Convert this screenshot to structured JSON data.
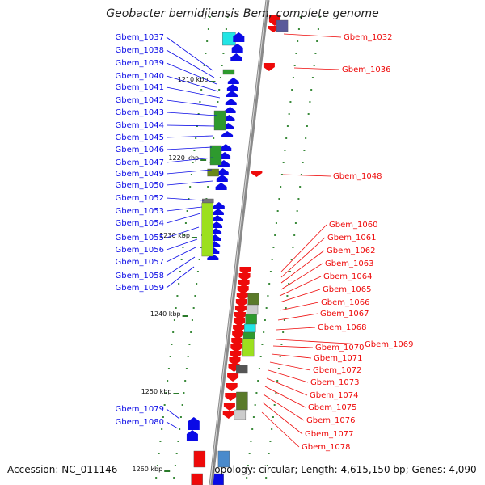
{
  "title": "Geobacter bemidjiensis Bem, complete genome",
  "accession": "Accession: NC_011146",
  "topology": "Topology: circular; Length: 4,615,150 bp; Genes: 4,090",
  "colors": {
    "forward": "#0a0ae6",
    "reverse": "#ee0a0a",
    "tick": "#2a7a2a",
    "backbone": "#8a8a8a"
  },
  "ticks": [
    {
      "label": "1210 kbp"
    },
    {
      "label": "1220 kbp"
    },
    {
      "label": "1230 kbp"
    },
    {
      "label": "1240 kbp"
    },
    {
      "label": "1250 kbp"
    },
    {
      "label": "1260 kbp"
    }
  ],
  "left_labels": [
    "Gbem_1037",
    "Gbem_1038",
    "Gbem_1039",
    "Gbem_1040",
    "Gbem_1041",
    "Gbem_1042",
    "Gbem_1043",
    "Gbem_1044",
    "Gbem_1045",
    "Gbem_1046",
    "Gbem_1047",
    "Gbem_1049",
    "Gbem_1050",
    "Gbem_1052",
    "Gbem_1053",
    "Gbem_1054",
    "Gbem_1055",
    "Gbem_1056",
    "Gbem_1057",
    "Gbem_1058",
    "Gbem_1059",
    "Gbem_1079",
    "Gbem_1080"
  ],
  "right_labels": [
    "Gbem_1032",
    "Gbem_1036",
    "Gbem_1048",
    "Gbem_1060",
    "Gbem_1061",
    "Gbem_1062",
    "Gbem_1063",
    "Gbem_1064",
    "Gbem_1065",
    "Gbem_1066",
    "Gbem_1067",
    "Gbem_1068",
    "Gbem_1069",
    "Gbem_1070",
    "Gbem_1071",
    "Gbem_1072",
    "Gbem_1073",
    "Gbem_1074",
    "Gbem_1075",
    "Gbem_1076",
    "Gbem_1077",
    "Gbem_1078"
  ]
}
